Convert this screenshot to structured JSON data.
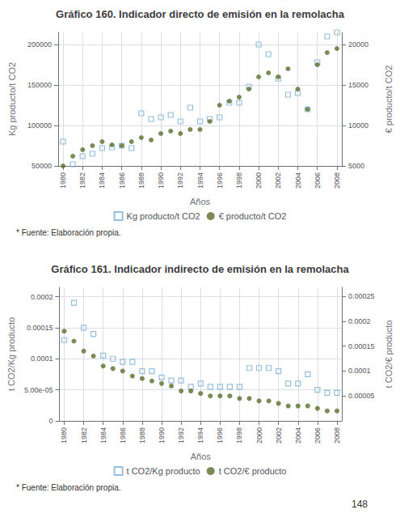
{
  "chart_data": [
    {
      "type": "scatter",
      "title": "Gráfico 160. Indicador directo de emisión en la remolacha",
      "xlabel": "Años",
      "ylabel": "Kg producto/t CO2",
      "y2label": "€ producto/t CO2",
      "x": [
        1980,
        1981,
        1982,
        1983,
        1984,
        1985,
        1986,
        1987,
        1988,
        1989,
        1990,
        1991,
        1992,
        1993,
        1994,
        1995,
        1996,
        1997,
        1998,
        1999,
        2000,
        2001,
        2002,
        2003,
        2004,
        2005,
        2006,
        2007,
        2008
      ],
      "series": [
        {
          "name": "Kg producto/t CO2",
          "color": "#7bafd4",
          "marker": "square",
          "values": [
            80000,
            52000,
            62000,
            65000,
            72000,
            73000,
            75000,
            72000,
            115000,
            108000,
            110000,
            113000,
            105000,
            122000,
            105000,
            108000,
            110000,
            128000,
            128000,
            148000,
            200000,
            188000,
            158000,
            138000,
            140000,
            120000,
            178000,
            210000,
            215000
          ]
        },
        {
          "name": "€ producto/t CO2",
          "color": "#5a6e2a",
          "marker": "circle",
          "axis": "y2",
          "values": [
            5000,
            6200,
            7000,
            7500,
            8000,
            7600,
            7500,
            8000,
            8500,
            8200,
            9000,
            9300,
            9000,
            9500,
            9500,
            10500,
            12500,
            13000,
            13500,
            14500,
            16000,
            16500,
            16000,
            17000,
            14500,
            12000,
            17500,
            19000,
            19500
          ]
        }
      ],
      "xlim": [
        1979.5,
        2008.5
      ],
      "xticks": [
        1980,
        1982,
        1984,
        1986,
        1988,
        1990,
        1992,
        1994,
        1996,
        1998,
        2000,
        2002,
        2004,
        2006,
        2008
      ],
      "ylim": [
        50000,
        215000
      ],
      "yticks": [
        50000,
        100000,
        150000,
        200000
      ],
      "y2lim": [
        5000,
        21500
      ],
      "y2ticks": [
        5000,
        10000,
        15000,
        20000
      ],
      "grid": true,
      "legend": "bottom",
      "annotations": [
        "* Fuente: Elaboración propia."
      ]
    },
    {
      "type": "scatter",
      "title": "Gráfico 161. Indicador indirecto de emisión en la remolacha",
      "xlabel": "Años",
      "ylabel": "t CO2/Kg producto",
      "y2label": "t CO2/€ producto",
      "x": [
        1980,
        1981,
        1982,
        1983,
        1984,
        1985,
        1986,
        1987,
        1988,
        1989,
        1990,
        1991,
        1992,
        1993,
        1994,
        1995,
        1996,
        1997,
        1998,
        1999,
        2000,
        2001,
        2002,
        2003,
        2004,
        2005,
        2006,
        2007,
        2008
      ],
      "series": [
        {
          "name": "t CO2/Kg producto",
          "color": "#7bafd4",
          "marker": "square",
          "values": [
            0.00013,
            0.00019,
            0.00015,
            0.00014,
            0.000105,
            0.0001,
            9.5e-05,
            9.5e-05,
            8e-05,
            8e-05,
            7e-05,
            6.5e-05,
            6.5e-05,
            5.5e-05,
            6e-05,
            5.5e-05,
            5.5e-05,
            5.5e-05,
            5.5e-05,
            8.5e-05,
            8.5e-05,
            8.5e-05,
            8e-05,
            6e-05,
            6e-05,
            7.5e-05,
            5e-05,
            4.5e-05,
            4.5e-05
          ]
        },
        {
          "name": "t CO2/€ producto",
          "color": "#5a6e2a",
          "marker": "circle",
          "axis": "y2",
          "values": [
            0.00018,
            0.00016,
            0.00014,
            0.00013,
            0.00011,
            0.000105,
            0.0001,
            9e-05,
            8.5e-05,
            8e-05,
            7.5e-05,
            7e-05,
            6e-05,
            6e-05,
            5.5e-05,
            5e-05,
            5e-05,
            5e-05,
            4.5e-05,
            4.5e-05,
            4e-05,
            4e-05,
            3.5e-05,
            3e-05,
            3e-05,
            3e-05,
            2.5e-05,
            2e-05,
            2e-05
          ]
        }
      ],
      "xlim": [
        1979.5,
        2008.5
      ],
      "xticks": [
        1980,
        1982,
        1984,
        1986,
        1988,
        1990,
        1992,
        1994,
        1996,
        1998,
        2000,
        2002,
        2004,
        2006,
        2008
      ],
      "ylim": [
        0,
        0.000215
      ],
      "yticks": [
        0,
        {
          "value": 5e-05,
          "label": "5.00e-05"
        },
        0.0001,
        0.00015,
        0.0002
      ],
      "y2lim": [
        0,
        0.000268
      ],
      "y2ticks": [
        5e-05,
        0.0001,
        0.00015,
        0.0002,
        0.00025
      ],
      "grid": true,
      "legend": "bottom",
      "annotations": [
        "* Fuente: Elaboración propia.",
        "148"
      ]
    }
  ]
}
